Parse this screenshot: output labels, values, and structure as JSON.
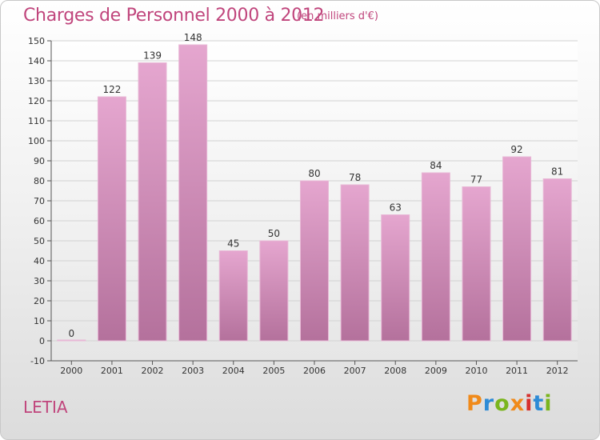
{
  "header": {
    "title": "Charges de Personnel 2000 à 2012",
    "subtitle": "(en milliers d'€)"
  },
  "footer": {
    "commune": "LETIA",
    "logo_text": "Proxiti"
  },
  "colors": {
    "accent": "#c0457c",
    "bar_top": "#e5a6cf",
    "bar_bottom": "#b4719c",
    "logo": [
      "#f08a1a",
      "#2e8bd6",
      "#7ab51d",
      "#f08a1a",
      "#d6312e",
      "#2e8bd6",
      "#7ab51d"
    ]
  },
  "chart_data": {
    "type": "bar",
    "title": "Charges de Personnel 2000 à 2012",
    "subtitle": "(en milliers d'€)",
    "categories": [
      "2000",
      "2001",
      "2002",
      "2003",
      "2004",
      "2005",
      "2006",
      "2007",
      "2008",
      "2009",
      "2010",
      "2011",
      "2012"
    ],
    "values": [
      0,
      122,
      139,
      148,
      45,
      50,
      80,
      78,
      63,
      84,
      77,
      92,
      81
    ],
    "ylim": [
      -10,
      150
    ],
    "yticks": [
      -10,
      0,
      10,
      20,
      30,
      40,
      50,
      60,
      70,
      80,
      90,
      100,
      110,
      120,
      130,
      140,
      150
    ],
    "grid": true,
    "xlabel": "",
    "ylabel": ""
  }
}
